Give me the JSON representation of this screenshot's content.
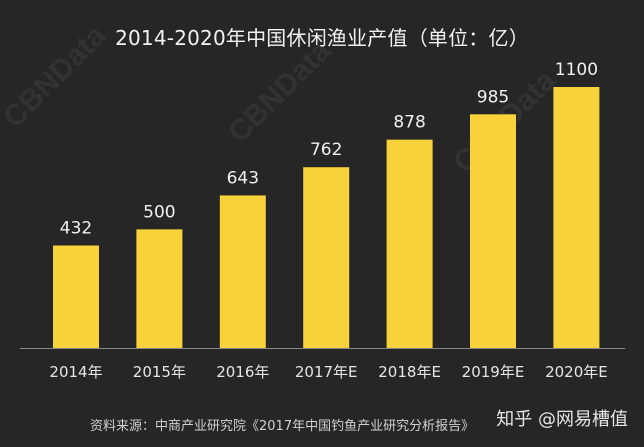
{
  "chart_data": {
    "type": "bar",
    "title": "2014-2020年中国休闲渔业产值（单位：亿）",
    "categories": [
      "2014年",
      "2015年",
      "2016年",
      "2017年E",
      "2018年E",
      "2019年E",
      "2020年E"
    ],
    "values": [
      432,
      500,
      643,
      762,
      878,
      985,
      1100
    ],
    "data_labels": [
      "432",
      "500",
      "643",
      "762",
      "878",
      "985",
      "1100"
    ],
    "ylim": [
      0,
      1100
    ],
    "grid": false,
    "bar_color": "#f7d23a",
    "background_color": "#262626"
  },
  "footer": {
    "source": "资料来源：中商产业研究院《2017年中国钓鱼产业研究分析报告》",
    "brand": "知乎 @网易槽值"
  },
  "watermark": "CBNData"
}
